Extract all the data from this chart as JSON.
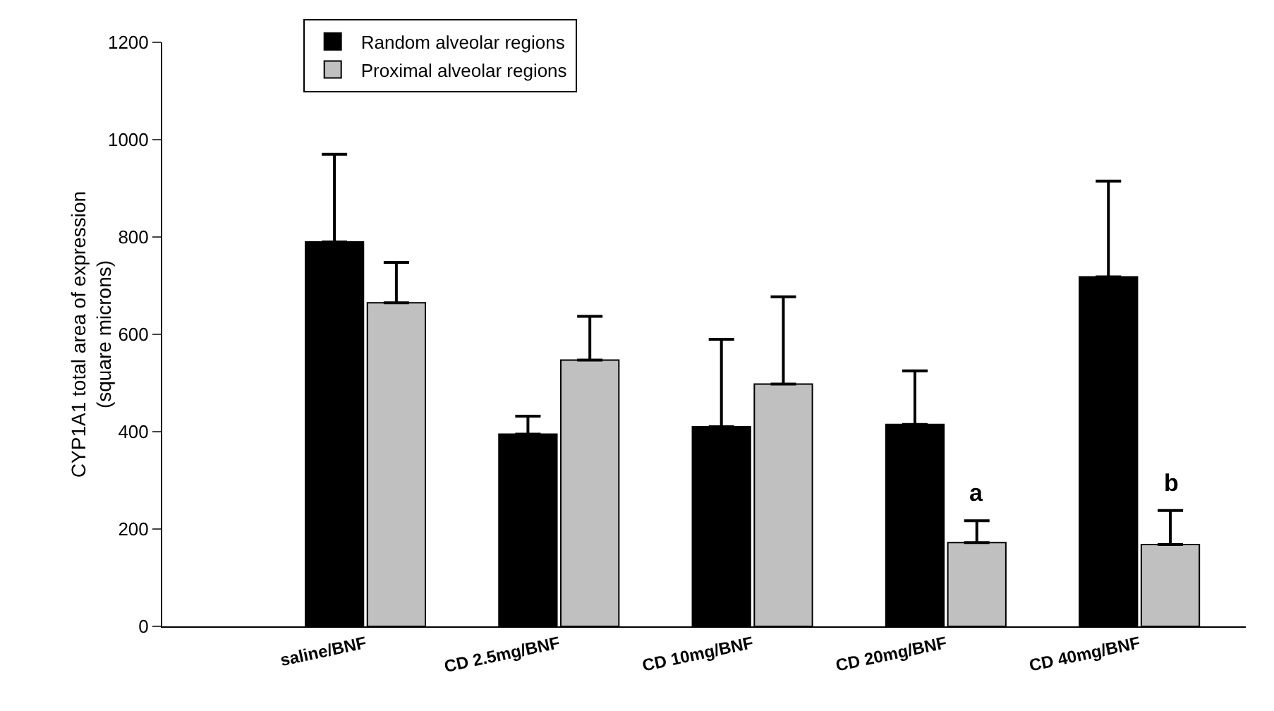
{
  "chart_data": {
    "type": "bar",
    "ylabel": "CYP1A1 total area of expression\n(square microns)",
    "categories": [
      "saline/BNF",
      "CD 2.5mg/BNF",
      "CD 10mg/BNF",
      "CD 20mg/BNF",
      "CD 40mg/BNF"
    ],
    "series": [
      {
        "name": "Random alveolar regions",
        "color": "#000000",
        "values": [
          790,
          395,
          410,
          415,
          718
        ],
        "errors": [
          [
            790,
            970
          ],
          [
            395,
            432
          ],
          [
            410,
            590
          ],
          [
            415,
            525
          ],
          [
            718,
            915
          ]
        ]
      },
      {
        "name": "Proximal alveolar regions",
        "color": "#c0c0c0",
        "values": [
          665,
          547,
          498,
          172,
          168
        ],
        "errors": [
          [
            665,
            748
          ],
          [
            547,
            637
          ],
          [
            498,
            677
          ],
          [
            172,
            217
          ],
          [
            168,
            238
          ]
        ]
      }
    ],
    "ylim": [
      0,
      1200
    ],
    "yticks": [
      0,
      200,
      400,
      600,
      800,
      1000,
      1200
    ],
    "grid": false,
    "legend": "top left",
    "annotations": [
      "a",
      "b"
    ]
  }
}
